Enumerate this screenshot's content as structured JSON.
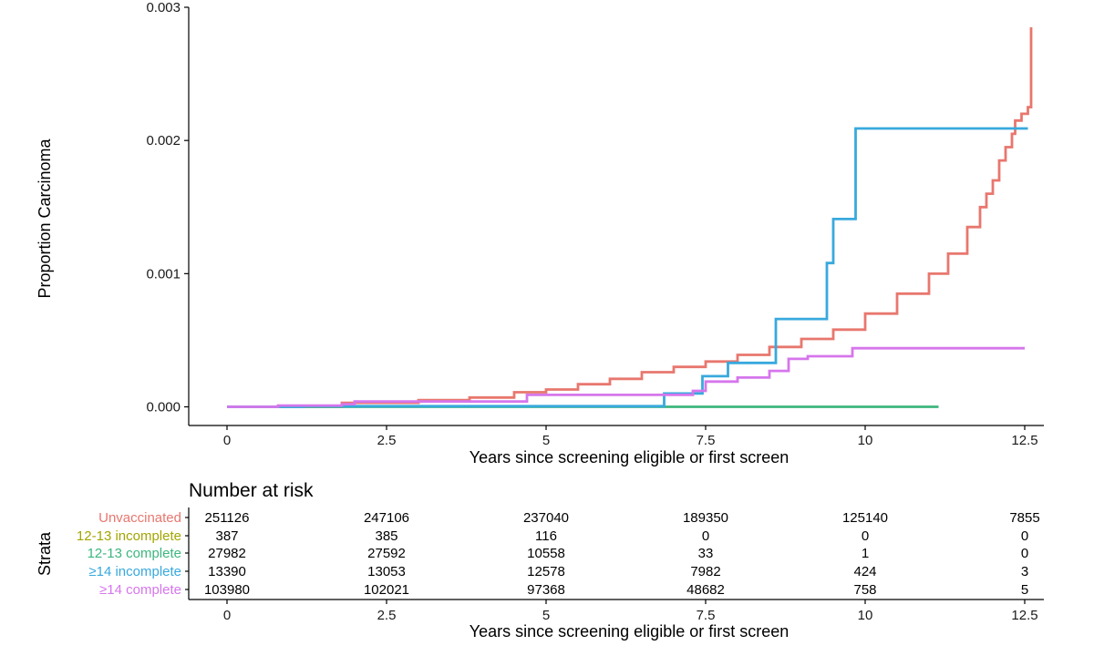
{
  "chart_data": [
    {
      "type": "line",
      "subtype": "kaplan-meier-cumulative-incidence",
      "xlabel": "Years since screening eligible or first screen",
      "ylabel": "Proportion Carcinoma",
      "xlim": [
        -0.6,
        12.8
      ],
      "ylim": [
        -0.00014,
        0.003
      ],
      "x_ticks": [
        0,
        2.5,
        5,
        7.5,
        10,
        12.5
      ],
      "x_tick_labels": [
        "0",
        "2.5",
        "5",
        "7.5",
        "10",
        "12.5"
      ],
      "y_ticks": [
        0,
        0.001,
        0.002,
        0.003
      ],
      "y_tick_labels": [
        "0.000",
        "0.001",
        "0.002",
        "0.003"
      ],
      "grid": false,
      "legend": "none (strata named in risk table)",
      "series": [
        {
          "name": "Unvaccinated",
          "color": "#E8776E",
          "x": [
            0,
            1.8,
            3.0,
            3.8,
            4.5,
            5.0,
            5.5,
            6.0,
            6.5,
            7.0,
            7.5,
            8.0,
            8.5,
            9.0,
            9.5,
            10.0,
            10.5,
            11.0,
            11.3,
            11.6,
            11.8,
            11.9,
            12.0,
            12.1,
            12.2,
            12.3,
            12.35,
            12.45,
            12.55,
            12.6
          ],
          "y": [
            0,
            3e-05,
            5e-05,
            7e-05,
            0.00011,
            0.00013,
            0.00017,
            0.00021,
            0.00026,
            0.0003,
            0.00034,
            0.00039,
            0.00045,
            0.00051,
            0.00058,
            0.0007,
            0.00085,
            0.001,
            0.00115,
            0.00135,
            0.0015,
            0.0016,
            0.0017,
            0.00185,
            0.00195,
            0.00205,
            0.00215,
            0.0022,
            0.00225,
            0.00285
          ]
        },
        {
          "name": "12-13 complete",
          "color": "#3DB67E",
          "x": [
            0,
            11.15
          ],
          "y": [
            0,
            0
          ]
        },
        {
          "name": "≥14 incomplete",
          "color": "#38A9DD",
          "x": [
            0,
            1.2,
            6.85,
            7.45,
            7.85,
            8.6,
            9.4,
            9.5,
            9.85,
            12.55
          ],
          "y": [
            0,
            5e-06,
            0.0001,
            0.00023,
            0.00033,
            0.00066,
            0.00108,
            0.00141,
            0.00209,
            0.00209
          ]
        },
        {
          "name": "≥14 complete",
          "color": "#D676EC",
          "x": [
            0,
            0.8,
            1.3,
            1.8,
            2.0,
            3.8,
            4.7,
            6.9,
            7.3,
            7.5,
            8.0,
            8.5,
            8.8,
            9.1,
            9.8,
            12.5
          ],
          "y": [
            0,
            1e-05,
            1e-05,
            2e-05,
            4e-05,
            4e-05,
            9e-05,
            9e-05,
            0.00012,
            0.00019,
            0.00022,
            0.00027,
            0.00036,
            0.00038,
            0.00044,
            0.00044
          ]
        }
      ]
    },
    {
      "type": "table",
      "title": "Number at risk",
      "row_axis_label": "Strata",
      "xlabel": "Years since screening eligible or first screen",
      "x_ticks": [
        0,
        2.5,
        5,
        7.5,
        10,
        12.5
      ],
      "x_tick_labels": [
        "0",
        "2.5",
        "5",
        "7.5",
        "10",
        "12.5"
      ],
      "rows": [
        {
          "name": "Unvaccinated",
          "color": "#E8776E",
          "values": [
            "251126",
            "247106",
            "237040",
            "189350",
            "125140",
            "7855"
          ]
        },
        {
          "name": "12-13 incomplete",
          "color": "#A3A500",
          "values": [
            "387",
            "385",
            "116",
            "0",
            "0",
            "0"
          ]
        },
        {
          "name": "12-13 complete",
          "color": "#3DB67E",
          "values": [
            "27982",
            "27592",
            "10558",
            "33",
            "1",
            "0"
          ]
        },
        {
          "name": "≥14 incomplete",
          "color": "#38A9DD",
          "values": [
            "13390",
            "13053",
            "12578",
            "7982",
            "424",
            "3"
          ]
        },
        {
          "name": "≥14 complete",
          "color": "#D676EC",
          "values": [
            "103980",
            "102021",
            "97368",
            "48682",
            "758",
            "5"
          ]
        }
      ]
    }
  ]
}
